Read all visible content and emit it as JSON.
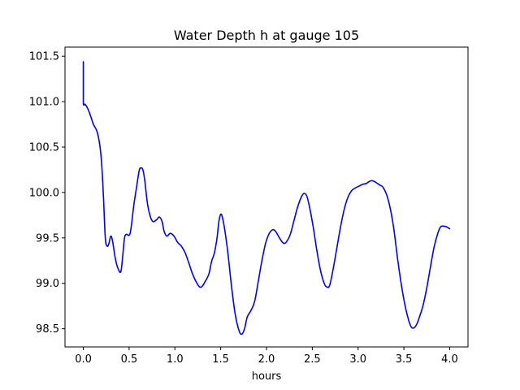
{
  "chart_data": {
    "type": "line",
    "title": "Water Depth h at gauge 105",
    "xlabel": "hours",
    "ylabel": "",
    "xlim": [
      -0.2,
      4.2
    ],
    "ylim": [
      98.3,
      101.6
    ],
    "xticks": [
      0.0,
      0.5,
      1.0,
      1.5,
      2.0,
      2.5,
      3.0,
      3.5,
      4.0
    ],
    "xtick_labels": [
      "0.0",
      "0.5",
      "1.0",
      "1.5",
      "2.0",
      "2.5",
      "3.0",
      "3.5",
      "4.0"
    ],
    "yticks": [
      98.5,
      99.0,
      99.5,
      100.0,
      100.5,
      101.0,
      101.5
    ],
    "ytick_labels": [
      "98.5",
      "99.0",
      "99.5",
      "100.0",
      "100.5",
      "101.0",
      "101.5"
    ],
    "grid": false,
    "series": [
      {
        "color": "#0000ff",
        "x": [
          0.0,
          0.0,
          0.0,
          0.02,
          0.05,
          0.08,
          0.11,
          0.15,
          0.18,
          0.2,
          0.22,
          0.24,
          0.26,
          0.28,
          0.3,
          0.32,
          0.35,
          0.38,
          0.41,
          0.43,
          0.45,
          0.47,
          0.5,
          0.52,
          0.55,
          0.58,
          0.61,
          0.63,
          0.65,
          0.67,
          0.7,
          0.73,
          0.76,
          0.8,
          0.83,
          0.86,
          0.88,
          0.91,
          0.95,
          0.99,
          1.03,
          1.07,
          1.11,
          1.15,
          1.19,
          1.23,
          1.27,
          1.3,
          1.33,
          1.37,
          1.4,
          1.43,
          1.46,
          1.48,
          1.5,
          1.52,
          1.55,
          1.58,
          1.62,
          1.66,
          1.7,
          1.73,
          1.76,
          1.79,
          1.83,
          1.87,
          1.91,
          1.95,
          1.99,
          2.03,
          2.07,
          2.1,
          2.13,
          2.16,
          2.19,
          2.22,
          2.26,
          2.3,
          2.34,
          2.38,
          2.41,
          2.44,
          2.47,
          2.51,
          2.55,
          2.59,
          2.63,
          2.66,
          2.69,
          2.73,
          2.77,
          2.81,
          2.85,
          2.89,
          2.93,
          2.97,
          3.01,
          3.05,
          3.09,
          3.12,
          3.15,
          3.18,
          3.21,
          3.24,
          3.27,
          3.31,
          3.35,
          3.39,
          3.43,
          3.47,
          3.51,
          3.55,
          3.58,
          3.61,
          3.64,
          3.67,
          3.71,
          3.75,
          3.79,
          3.83,
          3.87,
          3.9,
          3.93,
          3.97,
          4.0
        ],
        "y": [
          101.44,
          101.2,
          100.98,
          100.97,
          100.92,
          100.84,
          100.75,
          100.67,
          100.52,
          100.32,
          99.95,
          99.5,
          99.41,
          99.44,
          99.52,
          99.46,
          99.27,
          99.16,
          99.13,
          99.3,
          99.5,
          99.54,
          99.53,
          99.6,
          99.85,
          100.05,
          100.24,
          100.27,
          100.25,
          100.14,
          99.88,
          99.74,
          99.68,
          99.7,
          99.73,
          99.68,
          99.58,
          99.52,
          99.55,
          99.52,
          99.45,
          99.41,
          99.34,
          99.23,
          99.11,
          99.02,
          98.96,
          98.97,
          99.02,
          99.1,
          99.24,
          99.33,
          99.5,
          99.68,
          99.76,
          99.72,
          99.55,
          99.32,
          98.95,
          98.65,
          98.48,
          98.44,
          98.5,
          98.63,
          98.7,
          98.8,
          99.02,
          99.25,
          99.44,
          99.55,
          99.59,
          99.57,
          99.52,
          99.47,
          99.44,
          99.46,
          99.54,
          99.69,
          99.84,
          99.95,
          99.99,
          99.96,
          99.84,
          99.62,
          99.36,
          99.14,
          99.0,
          98.96,
          98.98,
          99.17,
          99.4,
          99.63,
          99.82,
          99.95,
          100.02,
          100.05,
          100.07,
          100.09,
          100.1,
          100.12,
          100.13,
          100.12,
          100.1,
          100.08,
          100.06,
          99.98,
          99.83,
          99.6,
          99.28,
          99.0,
          98.77,
          98.6,
          98.52,
          98.51,
          98.55,
          98.63,
          98.76,
          98.95,
          99.18,
          99.4,
          99.55,
          99.62,
          99.63,
          99.62,
          99.6
        ]
      }
    ]
  }
}
